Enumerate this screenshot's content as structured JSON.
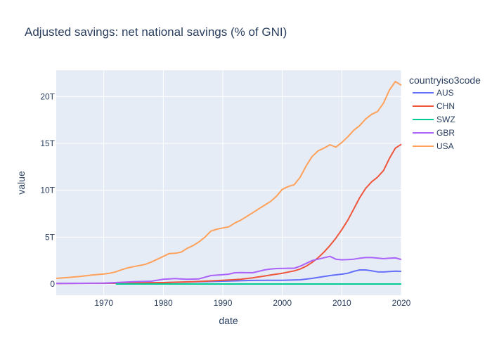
{
  "chart_data": {
    "type": "line",
    "title": "Adjusted savings: net national savings (% of GNI)",
    "xlabel": "date",
    "ylabel": "value",
    "xlim": [
      1962,
      2020
    ],
    "ylim": [
      -1.2,
      22.8
    ],
    "y_unit_suffix": "T",
    "x_ticks": [
      1970,
      1980,
      1990,
      2000,
      2010,
      2020
    ],
    "y_ticks": [
      0,
      5,
      10,
      15,
      20
    ],
    "y_tick_labels": [
      "0",
      "5T",
      "10T",
      "15T",
      "20T"
    ],
    "grid": true,
    "plot_background": "#e5ecf6",
    "legend": {
      "title": "countryiso3code",
      "placement": "top-right, outside plot"
    },
    "series": [
      {
        "name": "AUS",
        "color": "#636efa",
        "x": [
          1962,
          1970,
          1980,
          1990,
          1995,
          2000,
          2003,
          2005,
          2008,
          2010,
          2011,
          2012,
          2013,
          2014,
          2015,
          2016,
          2017,
          2018,
          2019,
          2020
        ],
        "y": [
          0.05,
          0.07,
          0.15,
          0.3,
          0.38,
          0.4,
          0.45,
          0.6,
          0.9,
          1.05,
          1.15,
          1.35,
          1.5,
          1.5,
          1.4,
          1.3,
          1.28,
          1.33,
          1.37,
          1.35
        ]
      },
      {
        "name": "CHN",
        "color": "#ef553b",
        "x": [
          1962,
          1970,
          1980,
          1985,
          1990,
          1993,
          1995,
          1998,
          2000,
          2002,
          2003,
          2004,
          2005,
          2006,
          2007,
          2008,
          2009,
          2010,
          2011,
          2012,
          2013,
          2014,
          2015,
          2016,
          2017,
          2018,
          2019,
          2020
        ],
        "y": [
          0.05,
          0.08,
          0.15,
          0.25,
          0.4,
          0.5,
          0.65,
          0.95,
          1.15,
          1.4,
          1.6,
          1.9,
          2.3,
          2.8,
          3.4,
          4.1,
          4.9,
          5.8,
          6.8,
          8.0,
          9.2,
          10.2,
          10.9,
          11.4,
          12.1,
          13.4,
          14.5,
          14.9
        ]
      },
      {
        "name": "SWZ",
        "color": "#00cc96",
        "x": [
          1972,
          1980,
          1990,
          2000,
          2010,
          2020
        ],
        "y": [
          0.0,
          0.0,
          0.0,
          0.0,
          0.0,
          0.0
        ]
      },
      {
        "name": "GBR",
        "color": "#ab63fa",
        "x": [
          1962,
          1970,
          1975,
          1978,
          1980,
          1982,
          1984,
          1986,
          1988,
          1990,
          1991,
          1992,
          1993,
          1995,
          1996,
          1997,
          1998,
          1999,
          2001,
          2002,
          2003,
          2004,
          2005,
          2006,
          2007,
          2008,
          2009,
          2010,
          2011,
          2012,
          2013,
          2014,
          2015,
          2016,
          2017,
          2018,
          2019,
          2020
        ],
        "y": [
          0.05,
          0.1,
          0.25,
          0.3,
          0.5,
          0.58,
          0.5,
          0.55,
          0.9,
          1.0,
          1.05,
          1.2,
          1.22,
          1.2,
          1.35,
          1.5,
          1.6,
          1.65,
          1.68,
          1.68,
          1.9,
          2.2,
          2.5,
          2.65,
          2.8,
          2.95,
          2.65,
          2.58,
          2.6,
          2.65,
          2.75,
          2.82,
          2.82,
          2.77,
          2.7,
          2.75,
          2.78,
          2.62
        ]
      },
      {
        "name": "USA",
        "color": "#ffa15a",
        "x": [
          1962,
          1964,
          1966,
          1968,
          1970,
          1971,
          1972,
          1973,
          1974,
          1975,
          1976,
          1977,
          1978,
          1979,
          1980,
          1981,
          1982,
          1983,
          1984,
          1985,
          1986,
          1987,
          1988,
          1989,
          1990,
          1991,
          1992,
          1993,
          1994,
          1995,
          1996,
          1997,
          1998,
          1999,
          2000,
          2001,
          2002,
          2003,
          2004,
          2005,
          2006,
          2007,
          2008,
          2009,
          2010,
          2011,
          2012,
          2013,
          2014,
          2015,
          2016,
          2017,
          2018,
          2019,
          2020
        ],
        "y": [
          0.6,
          0.7,
          0.8,
          0.95,
          1.07,
          1.15,
          1.3,
          1.52,
          1.72,
          1.85,
          1.97,
          2.1,
          2.35,
          2.65,
          2.95,
          3.25,
          3.28,
          3.4,
          3.8,
          4.1,
          4.5,
          5.0,
          5.65,
          5.85,
          5.98,
          6.1,
          6.5,
          6.8,
          7.2,
          7.6,
          8.0,
          8.4,
          8.8,
          9.35,
          10.1,
          10.4,
          10.6,
          11.4,
          12.6,
          13.6,
          14.2,
          14.5,
          14.85,
          14.6,
          15.1,
          15.7,
          16.4,
          16.9,
          17.6,
          18.1,
          18.4,
          19.3,
          20.7,
          21.6,
          21.2
        ]
      }
    ]
  }
}
